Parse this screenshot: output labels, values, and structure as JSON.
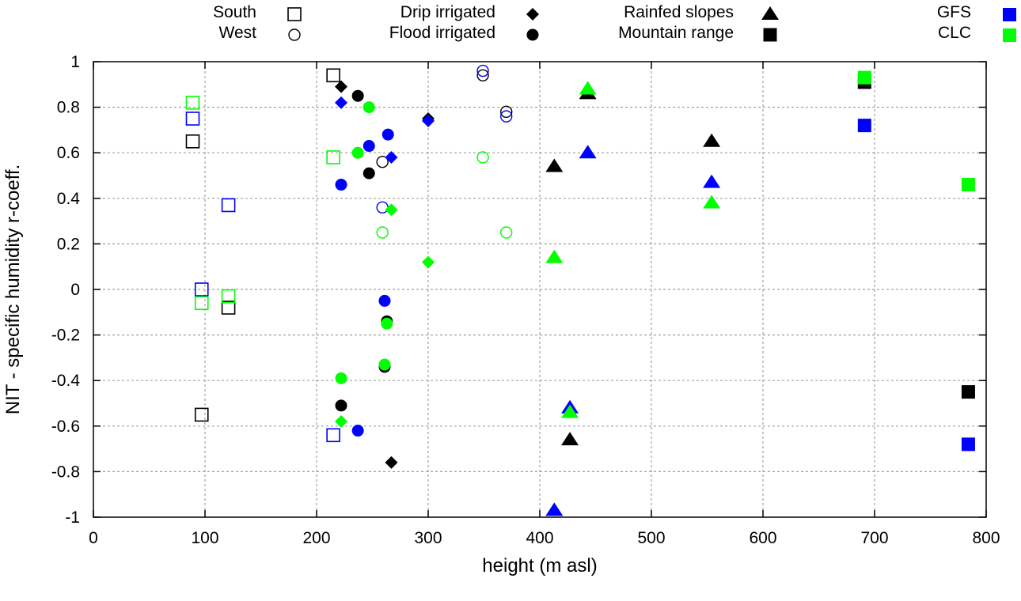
{
  "chart_data": {
    "type": "scatter",
    "title": "",
    "xlabel": "height (m asl)",
    "ylabel": "NIT - specific humidity r-coeff.",
    "xlim": [
      0,
      800
    ],
    "ylim": [
      -1,
      1
    ],
    "xticks": [
      0,
      100,
      200,
      300,
      400,
      500,
      600,
      700,
      800
    ],
    "yticks": [
      -1,
      -0.8,
      -0.6,
      -0.4,
      -0.2,
      0,
      0.2,
      0.4,
      0.6,
      0.8,
      1
    ],
    "grid": true,
    "legend": {
      "placement": "top",
      "shapes": [
        {
          "label": "South",
          "marker": "open-square"
        },
        {
          "label": "West",
          "marker": "open-circle"
        },
        {
          "label": "Drip irrigated",
          "marker": "filled-diamond"
        },
        {
          "label": "Flood irrigated",
          "marker": "filled-circle"
        },
        {
          "label": "Rainfed slopes",
          "marker": "filled-triangle"
        },
        {
          "label": "Mountain range",
          "marker": "filled-square"
        }
      ],
      "colors": [
        {
          "label": "GFS",
          "color": "#0000ff"
        },
        {
          "label": "CLC",
          "color": "#00ff00"
        }
      ]
    },
    "colors": {
      "black": "#000000",
      "GFS": "#0000ff",
      "CLC": "#00ff00"
    },
    "series": [
      {
        "name": "South",
        "marker": "open-square",
        "color": "#000000",
        "points": [
          [
            89,
            0.65
          ],
          [
            215,
            0.94
          ],
          [
            97,
            -0.55
          ],
          [
            121,
            -0.08
          ]
        ]
      },
      {
        "name": "South GFS",
        "marker": "open-square",
        "color": "#0000ff",
        "points": [
          [
            89,
            0.75
          ],
          [
            121,
            0.37
          ],
          [
            97,
            0.0
          ],
          [
            215,
            -0.64
          ]
        ]
      },
      {
        "name": "South CLC",
        "marker": "open-square",
        "color": "#00ff00",
        "points": [
          [
            89,
            0.82
          ],
          [
            215,
            0.58
          ],
          [
            97,
            -0.06
          ],
          [
            121,
            -0.03
          ]
        ]
      },
      {
        "name": "West",
        "marker": "open-circle",
        "color": "#000000",
        "points": [
          [
            349,
            0.94
          ],
          [
            370,
            0.78
          ],
          [
            259,
            0.56
          ]
        ]
      },
      {
        "name": "West GFS",
        "marker": "open-circle",
        "color": "#0000ff",
        "points": [
          [
            349,
            0.96
          ],
          [
            370,
            0.76
          ],
          [
            259,
            0.36
          ]
        ]
      },
      {
        "name": "West CLC",
        "marker": "open-circle",
        "color": "#00ff00",
        "points": [
          [
            349,
            0.58
          ],
          [
            259,
            0.25
          ],
          [
            370,
            0.25
          ]
        ]
      },
      {
        "name": "Drip irrigated",
        "marker": "filled-diamond",
        "color": "#000000",
        "points": [
          [
            222,
            0.89
          ],
          [
            300,
            0.75
          ],
          [
            267,
            -0.76
          ]
        ]
      },
      {
        "name": "Drip irrigated GFS",
        "marker": "filled-diamond",
        "color": "#0000ff",
        "points": [
          [
            222,
            0.82
          ],
          [
            300,
            0.74
          ],
          [
            267,
            0.58
          ]
        ]
      },
      {
        "name": "Drip irrigated CLC",
        "marker": "filled-diamond",
        "color": "#00ff00",
        "points": [
          [
            267,
            0.35
          ],
          [
            300,
            0.12
          ],
          [
            222,
            -0.58
          ]
        ]
      },
      {
        "name": "Flood irrigated",
        "marker": "filled-circle",
        "color": "#000000",
        "points": [
          [
            237,
            0.85
          ],
          [
            247,
            0.51
          ],
          [
            263,
            -0.14
          ],
          [
            261,
            -0.34
          ],
          [
            222,
            -0.51
          ]
        ]
      },
      {
        "name": "Flood irrigated GFS",
        "marker": "filled-circle",
        "color": "#0000ff",
        "points": [
          [
            264,
            0.68
          ],
          [
            247,
            0.63
          ],
          [
            222,
            0.46
          ],
          [
            261,
            -0.05
          ],
          [
            237,
            -0.62
          ]
        ]
      },
      {
        "name": "Flood irrigated CLC",
        "marker": "filled-circle",
        "color": "#00ff00",
        "points": [
          [
            247,
            0.8
          ],
          [
            237,
            0.6
          ],
          [
            263,
            -0.15
          ],
          [
            261,
            -0.33
          ],
          [
            222,
            -0.39
          ]
        ]
      },
      {
        "name": "Rainfed slopes",
        "marker": "filled-triangle",
        "color": "#000000",
        "points": [
          [
            443,
            0.86
          ],
          [
            554,
            0.65
          ],
          [
            413,
            0.54
          ],
          [
            427,
            -0.66
          ]
        ]
      },
      {
        "name": "Rainfed slopes GFS",
        "marker": "filled-triangle",
        "color": "#0000ff",
        "points": [
          [
            443,
            0.6
          ],
          [
            554,
            0.47
          ],
          [
            427,
            -0.52
          ],
          [
            413,
            -0.97
          ]
        ]
      },
      {
        "name": "Rainfed slopes CLC",
        "marker": "filled-triangle",
        "color": "#00ff00",
        "points": [
          [
            443,
            0.88
          ],
          [
            554,
            0.38
          ],
          [
            413,
            0.14
          ],
          [
            427,
            -0.54
          ]
        ]
      },
      {
        "name": "Mountain range",
        "marker": "filled-square",
        "color": "#000000",
        "points": [
          [
            691,
            0.91
          ],
          [
            784,
            -0.45
          ]
        ]
      },
      {
        "name": "Mountain range GFS",
        "marker": "filled-square",
        "color": "#0000ff",
        "points": [
          [
            691,
            0.72
          ],
          [
            784,
            -0.68
          ]
        ]
      },
      {
        "name": "Mountain range CLC",
        "marker": "filled-square",
        "color": "#00ff00",
        "points": [
          [
            691,
            0.93
          ],
          [
            784,
            0.46
          ]
        ]
      }
    ]
  }
}
